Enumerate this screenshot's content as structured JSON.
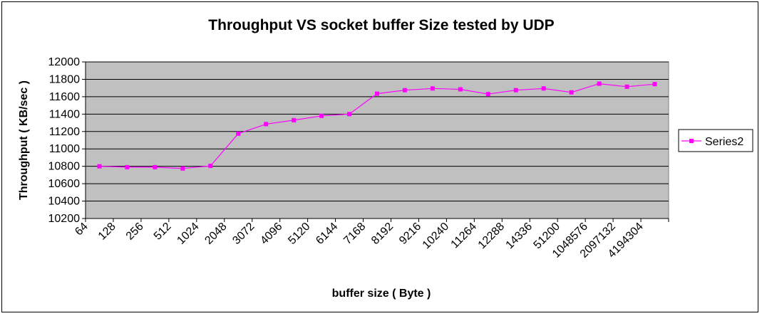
{
  "chart_data": {
    "type": "line",
    "title": "Throughput VS socket buffer Size  tested by UDP",
    "xlabel": "buffer size ( Byte )",
    "ylabel": "Throughput ( KB/sec )",
    "categories": [
      "64",
      "128",
      "256",
      "512",
      "1024",
      "2048",
      "3072",
      "4096",
      "5120",
      "6144",
      "7168",
      "8192",
      "9216",
      "10240",
      "11264",
      "12288",
      "14336",
      "51200",
      "1048576",
      "2097132",
      "4194304"
    ],
    "y_ticks": [
      "10200",
      "10400",
      "10600",
      "10800",
      "11000",
      "11200",
      "11400",
      "11600",
      "11800",
      "12000"
    ],
    "ylim": [
      10200,
      12000
    ],
    "grid": true,
    "legend_position": "right",
    "series": [
      {
        "name": "Series2",
        "values": [
          10800,
          10790,
          10790,
          10775,
          10805,
          11175,
          11285,
          11330,
          11380,
          11400,
          11635,
          11675,
          11695,
          11685,
          11630,
          11675,
          11695,
          11650,
          11750,
          11715,
          11745
        ]
      }
    ],
    "colors": {
      "plot_background": "#c0c0c0",
      "series": "#ff00ff",
      "grid": "#000000"
    }
  }
}
